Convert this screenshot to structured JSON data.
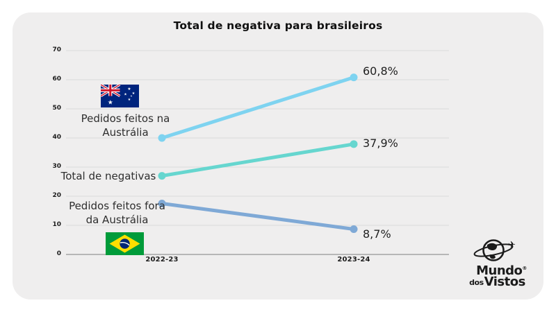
{
  "page": {
    "background": "#ffffff",
    "card_background": "#efeeee"
  },
  "chart_data": {
    "type": "line",
    "title": "Total de negativa para brasileiros",
    "categories": [
      "2022-23",
      "2023-24"
    ],
    "series": [
      {
        "name": "Pedidos feitos na Austrália",
        "values": [
          40,
          60.8
        ],
        "color": "#7ed3f0",
        "end_label": "60,8%"
      },
      {
        "name": "Total de negativas",
        "values": [
          27,
          37.9
        ],
        "color": "#66d6cf",
        "end_label": "37,9%"
      },
      {
        "name": "Pedidos feitos fora da Austrália",
        "values": [
          17.5,
          8.7
        ],
        "color": "#7fa9d6",
        "end_label": "8,7%"
      }
    ],
    "ylim": [
      0,
      70
    ],
    "ytick_step": 10,
    "yticks": [
      "0",
      "10",
      "20",
      "30",
      "40",
      "50",
      "60",
      "70"
    ],
    "grid": true,
    "gridline_color": "#d9d9d9",
    "axis_line_color": "#a3a3a3",
    "legend_position": "inline-annotations"
  },
  "annotations": {
    "onshore": {
      "line1": "Pedidos feitos na",
      "line2": "Austrália"
    },
    "total": {
      "text": "Total de negativas"
    },
    "offshore": {
      "line1": "Pedidos feitos fora",
      "line2": "da Austrália"
    },
    "flags": [
      "australia-flag",
      "brazil-flag"
    ]
  },
  "logo": {
    "brand_top": "Mundo",
    "registered_mark": "®",
    "brand_bottom_small": "dos",
    "brand_bottom": "Vistos",
    "icon": "globe-plane-icon"
  }
}
